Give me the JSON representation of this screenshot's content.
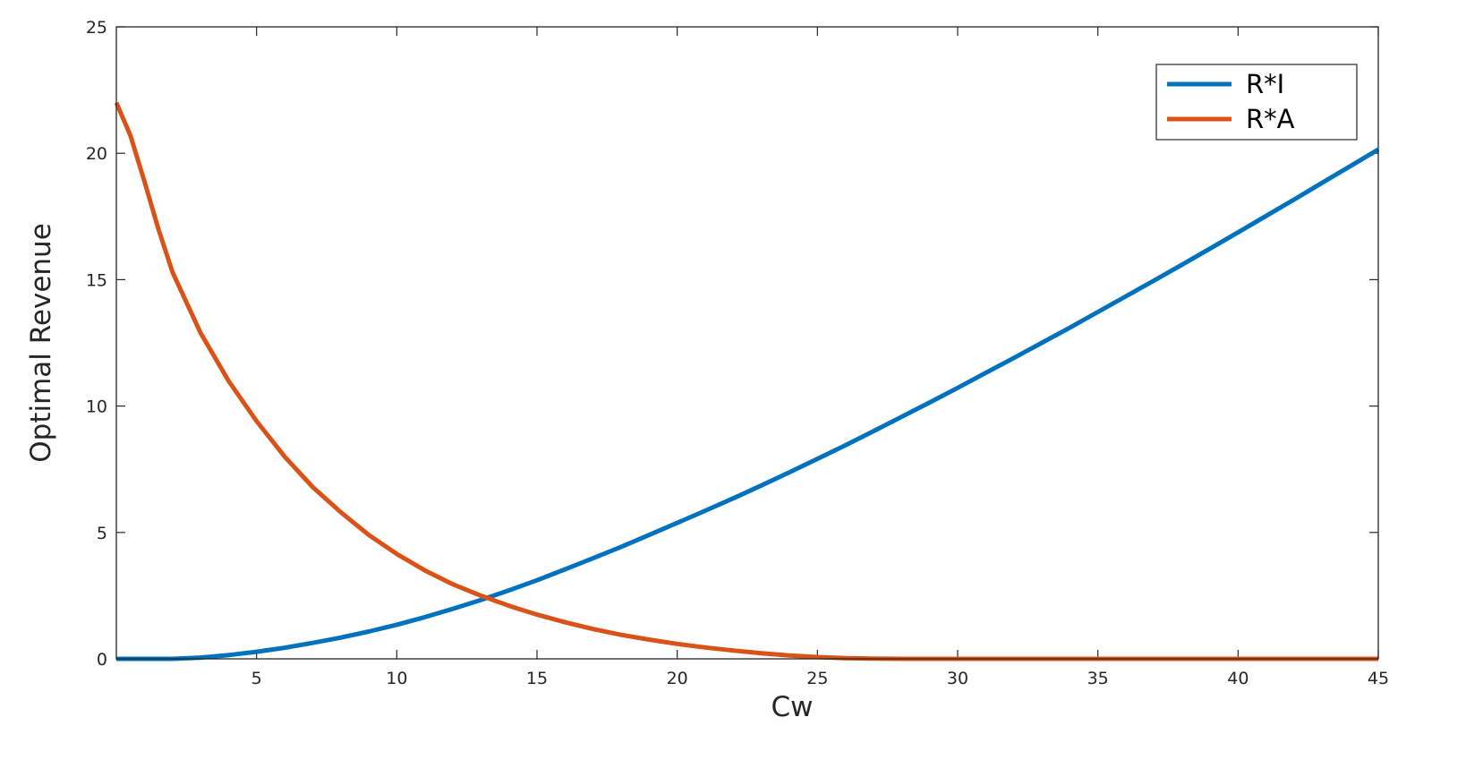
{
  "chart_data": {
    "type": "line",
    "title": "",
    "xlabel": "Cw",
    "ylabel": "Optimal Revenue",
    "xlim": [
      0,
      45
    ],
    "ylim": [
      0,
      25
    ],
    "xticks": [
      5,
      10,
      15,
      20,
      25,
      30,
      35,
      40,
      45
    ],
    "yticks": [
      0,
      5,
      10,
      15,
      20,
      25
    ],
    "grid": false,
    "legend_position": "top-right",
    "series": [
      {
        "name": "R*I",
        "color": "#0072BD",
        "x": [
          0,
          1,
          2,
          3,
          4,
          5,
          6,
          7,
          8,
          9,
          10,
          11,
          12,
          13,
          14,
          15,
          16,
          17,
          18,
          19,
          20,
          21,
          22,
          23,
          24,
          25,
          26,
          27,
          28,
          29,
          30,
          31,
          32,
          33,
          34,
          35,
          36,
          37,
          38,
          39,
          40,
          41,
          42,
          43,
          44,
          45
        ],
        "y": [
          0,
          0,
          0,
          0.05,
          0.15,
          0.28,
          0.44,
          0.63,
          0.84,
          1.08,
          1.35,
          1.65,
          1.98,
          2.33,
          2.71,
          3.11,
          3.54,
          3.98,
          4.43,
          4.9,
          5.38,
          5.86,
          6.35,
          6.86,
          7.38,
          7.91,
          8.45,
          9.01,
          9.57,
          10.14,
          10.72,
          11.31,
          11.9,
          12.5,
          13.1,
          13.72,
          14.34,
          14.96,
          15.59,
          16.23,
          16.87,
          17.52,
          18.17,
          18.83,
          19.49,
          20.15
        ]
      },
      {
        "name": "R*A",
        "color": "#D95319",
        "x": [
          0,
          0.5,
          1,
          1.5,
          2,
          3,
          4,
          5,
          6,
          7,
          8,
          9,
          10,
          11,
          12,
          13,
          14,
          15,
          16,
          17,
          18,
          19,
          20,
          21,
          22,
          23,
          24,
          25,
          26,
          27,
          28,
          29,
          30,
          32,
          34,
          36,
          38,
          40,
          42,
          45
        ],
        "y": [
          22.0,
          20.7,
          18.9,
          17.0,
          15.3,
          12.9,
          11.0,
          9.4,
          8.0,
          6.8,
          5.8,
          4.9,
          4.15,
          3.5,
          2.95,
          2.5,
          2.1,
          1.75,
          1.45,
          1.18,
          0.95,
          0.76,
          0.59,
          0.45,
          0.33,
          0.22,
          0.13,
          0.07,
          0.03,
          0.01,
          0,
          0,
          0,
          0,
          0,
          0,
          0,
          0,
          0,
          0
        ]
      }
    ]
  }
}
